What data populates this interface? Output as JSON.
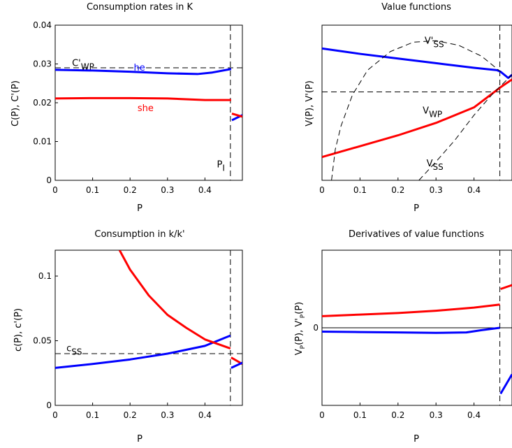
{
  "chart_data": [
    {
      "id": "consumption_rates",
      "type": "line",
      "title": "Consumption rates in K",
      "xlabel": "P",
      "ylabel": "C(P), C'(P)",
      "xlim": [
        0,
        0.5
      ],
      "ylim": [
        0,
        0.04
      ],
      "xticks": [
        "0",
        "0.1",
        "0.2",
        "0.3",
        "0.4"
      ],
      "yticks": [
        "0",
        "0.01",
        "0.02",
        "0.03",
        "0.04"
      ],
      "series": [
        {
          "name": "he",
          "color": "#0000ff",
          "x": [
            0,
            0.1,
            0.2,
            0.3,
            0.38,
            0.42,
            0.47
          ],
          "y": [
            0.0285,
            0.0283,
            0.028,
            0.0276,
            0.0274,
            0.0278,
            0.0287
          ]
        },
        {
          "name": "she",
          "color": "#ff0000",
          "x": [
            0,
            0.1,
            0.2,
            0.3,
            0.4,
            0.47
          ],
          "y": [
            0.0211,
            0.0212,
            0.0212,
            0.0211,
            0.0207,
            0.0207
          ]
        },
        {
          "name": "",
          "color": "#0000ff",
          "x": [
            0.472,
            0.5
          ],
          "y": [
            0.0155,
            0.0168
          ]
        },
        {
          "name": "",
          "color": "#ff0000",
          "x": [
            0.472,
            0.5
          ],
          "y": [
            0.0172,
            0.0164
          ]
        }
      ],
      "annotations": [
        {
          "text": "C'",
          "sub": "WP",
          "x": 0.045,
          "y": 0.0295
        },
        {
          "text": "he",
          "sub": "",
          "x": 0.21,
          "y": 0.0283,
          "color": "#0000ff"
        },
        {
          "text": "she",
          "sub": "",
          "x": 0.22,
          "y": 0.0178,
          "color": "#ff0000"
        },
        {
          "text": "P",
          "sub": "I",
          "x": 0.432,
          "y": 0.0033
        }
      ],
      "hlines": [
        0.029
      ],
      "vlines": [
        0.468
      ]
    },
    {
      "id": "value_functions",
      "type": "line",
      "title": "Value functions",
      "xlabel": "P",
      "ylabel": "V(P), V'(P)",
      "xlim": [
        0,
        0.5
      ],
      "ylim": [
        0,
        1
      ],
      "xticks": [
        "0",
        "0.1",
        "0.2",
        "0.3",
        "0.4"
      ],
      "yticks": [],
      "series": [
        {
          "name": "",
          "color": "#0000ff",
          "x": [
            0,
            0.1,
            0.2,
            0.3,
            0.4,
            0.46,
            0.47,
            0.49,
            0.5
          ],
          "y": [
            0.85,
            0.815,
            0.785,
            0.755,
            0.725,
            0.71,
            0.7,
            0.66,
            0.68
          ]
        },
        {
          "name": "",
          "color": "#ff0000",
          "x": [
            0,
            0.1,
            0.2,
            0.3,
            0.4,
            0.47,
            0.5
          ],
          "y": [
            0.15,
            0.22,
            0.29,
            0.37,
            0.47,
            0.6,
            0.65
          ]
        },
        {
          "name": "",
          "color": "#000000",
          "dash": true,
          "x": [
            0.025,
            0.035,
            0.05,
            0.08,
            0.12,
            0.18,
            0.24,
            0.3,
            0.36,
            0.42,
            0.47
          ],
          "y": [
            0.0,
            0.2,
            0.35,
            0.55,
            0.71,
            0.83,
            0.89,
            0.9,
            0.87,
            0.8,
            0.7
          ]
        },
        {
          "name": "",
          "color": "#000000",
          "dash": true,
          "x": [
            0.255,
            0.3,
            0.35,
            0.4,
            0.45,
            0.5
          ],
          "y": [
            0.0,
            0.12,
            0.26,
            0.42,
            0.56,
            0.68
          ]
        }
      ],
      "annotations": [
        {
          "text": "V'",
          "sub": "SS",
          "x": 0.27,
          "y": 0.88
        },
        {
          "text": "V",
          "sub": "WP",
          "x": 0.265,
          "y": 0.43
        },
        {
          "text": "V",
          "sub": "SS",
          "x": 0.275,
          "y": 0.09
        }
      ],
      "hlines": [
        0.57
      ],
      "vlines": [
        0.468
      ]
    },
    {
      "id": "consumption_kk",
      "type": "line",
      "title": "Consumption in k/k'",
      "xlabel": "P",
      "ylabel": "c(P), c'(P)",
      "xlim": [
        0,
        0.5
      ],
      "ylim": [
        0,
        0.12
      ],
      "xticks": [
        "0",
        "0.1",
        "0.2",
        "0.3",
        "0.4"
      ],
      "yticks": [
        "0",
        "0.05",
        "0.1"
      ],
      "series": [
        {
          "name": "",
          "color": "#0000ff",
          "x": [
            0,
            0.1,
            0.2,
            0.3,
            0.4,
            0.468
          ],
          "y": [
            0.029,
            0.032,
            0.0355,
            0.04,
            0.046,
            0.054
          ]
        },
        {
          "name": "",
          "color": "#ff0000",
          "x": [
            0.172,
            0.2,
            0.25,
            0.3,
            0.35,
            0.4,
            0.468
          ],
          "y": [
            0.12,
            0.105,
            0.085,
            0.07,
            0.06,
            0.051,
            0.044
          ]
        },
        {
          "name": "",
          "color": "#ff0000",
          "x": [
            0.47,
            0.5
          ],
          "y": [
            0.037,
            0.032
          ]
        },
        {
          "name": "",
          "color": "#0000ff",
          "x": [
            0.47,
            0.5
          ],
          "y": [
            0.029,
            0.033
          ]
        }
      ],
      "annotations": [
        {
          "text": "c",
          "sub": "SS",
          "x": 0.03,
          "y": 0.042
        }
      ],
      "hlines": [
        0.04
      ],
      "vlines": [
        0.468
      ]
    },
    {
      "id": "value_derivatives",
      "type": "line",
      "title": "Derivatives of value functions",
      "xlabel": "P",
      "ylabel": "V_P(P), V'_P(P)",
      "xlim": [
        0,
        0.5
      ],
      "ylim": [
        -1,
        1
      ],
      "xticks": [
        "0",
        "0.1",
        "0.2",
        "0.3",
        "0.4"
      ],
      "yticks": [
        "0"
      ],
      "series": [
        {
          "name": "",
          "color": "#ff0000",
          "x": [
            0,
            0.1,
            0.2,
            0.3,
            0.4,
            0.468
          ],
          "y": [
            0.15,
            0.17,
            0.19,
            0.22,
            0.26,
            0.3
          ]
        },
        {
          "name": "",
          "color": "#0000ff",
          "x": [
            0,
            0.1,
            0.2,
            0.3,
            0.38,
            0.42,
            0.468
          ],
          "y": [
            -0.05,
            -0.055,
            -0.06,
            -0.065,
            -0.06,
            -0.03,
            0.0
          ]
        },
        {
          "name": "",
          "color": "#ff0000",
          "x": [
            0.47,
            0.5
          ],
          "y": [
            0.5,
            0.55
          ]
        },
        {
          "name": "",
          "color": "#0000ff",
          "x": [
            0.47,
            0.5
          ],
          "y": [
            -0.85,
            -0.6
          ]
        }
      ],
      "annotations": [],
      "hlines": [],
      "vlines": [
        0.468
      ],
      "zeroline": 0
    }
  ]
}
